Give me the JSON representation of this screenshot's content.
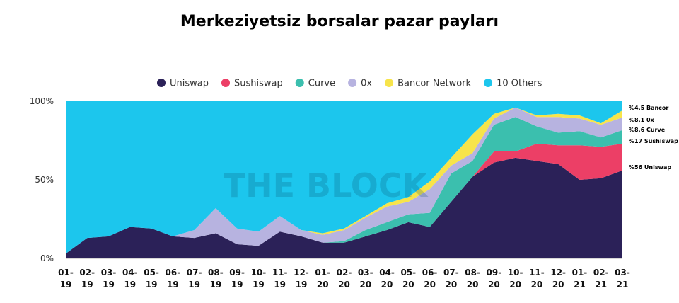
{
  "chart_data": {
    "type": "area",
    "stacked": true,
    "title": "Merkeziyetsiz borsalar pazar payları",
    "watermark": "THE BLOCK",
    "legend_position": "top",
    "yticks": [
      "100%",
      "50%",
      "0%"
    ],
    "ylim": [
      0,
      100
    ],
    "categories": [
      "01-19",
      "02-19",
      "03-19",
      "04-19",
      "05-19",
      "06-19",
      "07-19",
      "08-19",
      "09-19",
      "10-19",
      "11-19",
      "12-19",
      "01-20",
      "02-20",
      "03-20",
      "04-20",
      "05-20",
      "06-20",
      "07-20",
      "08-20",
      "09-20",
      "10-20",
      "11-20",
      "12-20",
      "01-21",
      "02-21",
      "03-21"
    ],
    "series": [
      {
        "name": "Uniswap",
        "color": "#2b2158",
        "values": [
          3,
          13,
          14,
          20,
          19,
          14,
          13,
          16,
          9,
          8,
          17,
          14,
          10,
          10,
          14,
          18,
          23,
          20,
          36,
          52,
          61,
          64,
          62,
          60,
          50,
          51,
          56
        ]
      },
      {
        "name": "Sushiswap",
        "color": "#ec3f66",
        "values": [
          0,
          0,
          0,
          0,
          0,
          0,
          0,
          0,
          0,
          0,
          0,
          0,
          0,
          0,
          0,
          0,
          0,
          0,
          0,
          0,
          7,
          4,
          11,
          12,
          22,
          20,
          17
        ]
      },
      {
        "name": "Curve",
        "color": "#3bbfae",
        "values": [
          0,
          0,
          0,
          0,
          0,
          0,
          0,
          0,
          0,
          0,
          0,
          0,
          0,
          1,
          4,
          5,
          5,
          9,
          18,
          10,
          17,
          22,
          11,
          8,
          9,
          6,
          8.6
        ]
      },
      {
        "name": "0x",
        "color": "#b7b3e0",
        "values": [
          0,
          0,
          0,
          0,
          0,
          0,
          5,
          16,
          10,
          9,
          10,
          4,
          5,
          7,
          8,
          10,
          8,
          15,
          5,
          5,
          4,
          6,
          6,
          10,
          8,
          8,
          8.1
        ]
      },
      {
        "name": "Bancor Network",
        "color": "#f7e44a",
        "values": [
          0,
          0,
          0,
          0,
          0,
          0,
          0,
          0,
          0,
          0,
          0,
          0,
          1,
          1,
          1,
          2,
          3,
          5,
          5,
          12,
          3,
          0,
          1,
          2,
          2,
          1,
          4.5
        ]
      },
      {
        "name": "10 Others",
        "color": "#1cc6ed",
        "values": [
          97,
          87,
          86,
          80,
          81,
          86,
          82,
          68,
          81,
          83,
          73,
          82,
          84,
          81,
          73,
          65,
          61,
          51,
          36,
          21,
          8,
          4,
          9,
          8,
          9,
          14,
          5.8
        ]
      }
    ],
    "annotations": [
      "%4.5 Bancor",
      "%8.1 0x",
      "%8.6 Curve",
      "%17 Sushiswap",
      "%56 Uniswap"
    ]
  }
}
